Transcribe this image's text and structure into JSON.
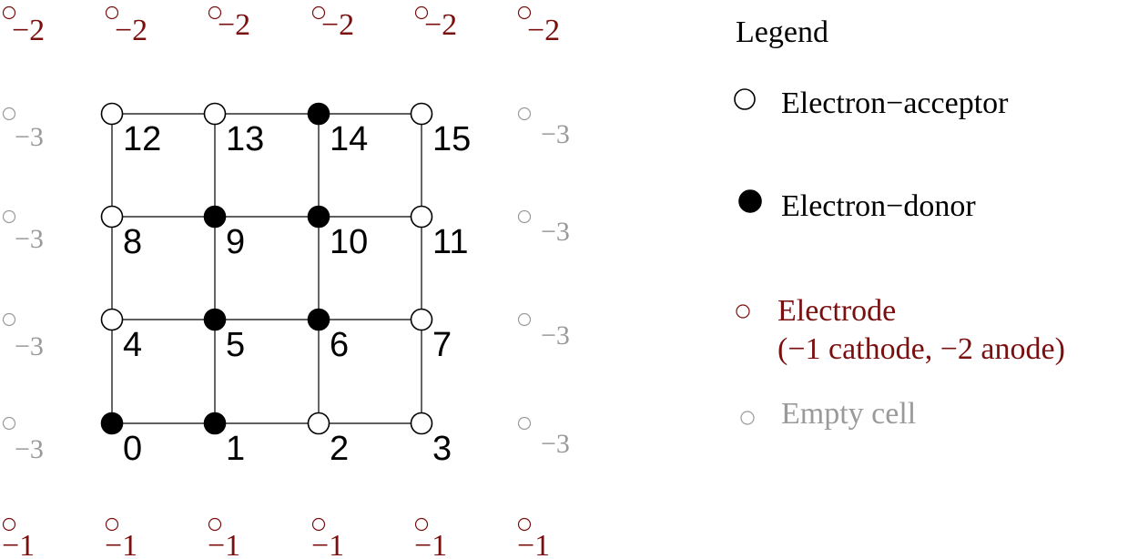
{
  "colors": {
    "electrode": "#7a0f0f",
    "empty": "#9a9a9a",
    "node": "#000000"
  },
  "grid": {
    "columns": 4,
    "rows": 4,
    "nodes": [
      {
        "id": "0",
        "type": "donor"
      },
      {
        "id": "1",
        "type": "donor"
      },
      {
        "id": "2",
        "type": "acceptor"
      },
      {
        "id": "3",
        "type": "acceptor"
      },
      {
        "id": "4",
        "type": "acceptor"
      },
      {
        "id": "5",
        "type": "donor"
      },
      {
        "id": "6",
        "type": "donor"
      },
      {
        "id": "7",
        "type": "acceptor"
      },
      {
        "id": "8",
        "type": "acceptor"
      },
      {
        "id": "9",
        "type": "donor"
      },
      {
        "id": "10",
        "type": "donor"
      },
      {
        "id": "11",
        "type": "acceptor"
      },
      {
        "id": "12",
        "type": "acceptor"
      },
      {
        "id": "13",
        "type": "acceptor"
      },
      {
        "id": "14",
        "type": "donor"
      },
      {
        "id": "15",
        "type": "acceptor"
      }
    ]
  },
  "top_electrodes": [
    "−2",
    "−2",
    "−2",
    "−2",
    "−2",
    "−2"
  ],
  "bottom_electrodes": [
    "−1",
    "−1",
    "−1",
    "−1",
    "−1",
    "−1"
  ],
  "left_empty": [
    "−3",
    "−3",
    "−3",
    "−3"
  ],
  "right_empty": [
    "−3",
    "−3",
    "−3",
    "−3"
  ],
  "legend": {
    "title": "Legend",
    "acceptor": "Electron−acceptor",
    "donor": "Electron−donor",
    "electrode_line1": "Electrode",
    "electrode_line2": "(−1 cathode, −2 anode)",
    "empty": "Empty cell"
  }
}
